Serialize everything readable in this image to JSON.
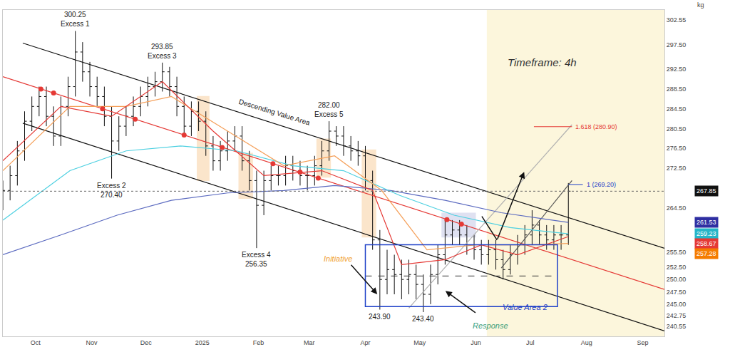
{
  "chart_data": {
    "type": "ohlc",
    "title": "Timeframe: 4h",
    "ylabel": "kg",
    "color": "#111111",
    "grid": false,
    "x": [
      "2024-09-13",
      "2024-09-17",
      "2024-09-21",
      "2024-09-25",
      "2024-09-29",
      "2024-10-03",
      "2024-10-07",
      "2024-10-11",
      "2024-10-15",
      "2024-10-19",
      "2024-10-23",
      "2024-10-27",
      "2024-10-31",
      "2024-11-04",
      "2024-11-08",
      "2024-11-12",
      "2024-11-16",
      "2024-11-20",
      "2024-11-24",
      "2024-11-28",
      "2024-12-02",
      "2024-12-06",
      "2024-12-10",
      "2024-12-14",
      "2024-12-18",
      "2024-12-22",
      "2024-12-26",
      "2024-12-30",
      "2025-01-03",
      "2025-01-07",
      "2025-01-11",
      "2025-01-15",
      "2025-01-19",
      "2025-01-23",
      "2025-01-27",
      "2025-01-31",
      "2025-02-04",
      "2025-02-08",
      "2025-02-12",
      "2025-02-16",
      "2025-02-20",
      "2025-02-24",
      "2025-02-28",
      "2025-03-04",
      "2025-03-08",
      "2025-03-12",
      "2025-03-16",
      "2025-03-20",
      "2025-03-24",
      "2025-03-28",
      "2025-04-01",
      "2025-04-05",
      "2025-04-09",
      "2025-04-13",
      "2025-04-17",
      "2025-04-21",
      "2025-04-25",
      "2025-04-29",
      "2025-05-03",
      "2025-05-07",
      "2025-05-11",
      "2025-05-15",
      "2025-05-19",
      "2025-05-23",
      "2025-05-27",
      "2025-05-31",
      "2025-06-04",
      "2025-06-08",
      "2025-06-12",
      "2025-06-16",
      "2025-06-20",
      "2025-06-24",
      "2025-06-28",
      "2025-07-02",
      "2025-07-06",
      "2025-07-10",
      "2025-07-14",
      "2025-07-18",
      "2025-07-22"
    ],
    "open": [
      266,
      268,
      271,
      276,
      282,
      285,
      287,
      283,
      279,
      285,
      289,
      296,
      292,
      289,
      287,
      283,
      278,
      281,
      283,
      285,
      287,
      289,
      290,
      292,
      289,
      285,
      281,
      284,
      282,
      277,
      274,
      276,
      278,
      279,
      274,
      270,
      265,
      270,
      271,
      271,
      273,
      272,
      271,
      271,
      273,
      276,
      280,
      279,
      277,
      276,
      275,
      270,
      258,
      250,
      252,
      251,
      250,
      251,
      249,
      247,
      251,
      255,
      259,
      260,
      259,
      257,
      256,
      255,
      256,
      254,
      252,
      255,
      257,
      259,
      261,
      259,
      258,
      259,
      259
    ],
    "high": [
      270,
      273,
      278,
      284,
      287,
      289,
      289,
      285,
      287,
      291,
      300.25,
      298,
      294,
      291,
      289,
      285,
      283,
      285,
      287,
      289,
      291,
      292,
      293.85,
      293,
      291,
      287,
      286,
      286,
      284,
      279,
      278,
      280,
      281,
      281,
      276,
      272,
      272,
      273,
      273,
      275,
      275,
      274,
      273,
      275,
      278,
      282,
      281,
      281,
      279,
      278,
      277,
      272,
      260,
      256,
      255,
      254,
      254,
      253,
      251,
      253,
      257,
      262,
      262,
      262,
      261,
      259,
      258,
      258,
      258,
      256,
      257,
      259,
      261,
      264,
      262,
      261,
      261,
      261,
      269.5
    ],
    "low": [
      264,
      266,
      269,
      274,
      280,
      283,
      281,
      277,
      277,
      283,
      287,
      290,
      287,
      285,
      281,
      270.4,
      276,
      279,
      281,
      283,
      285,
      287,
      288,
      287,
      283,
      279,
      279,
      280,
      275,
      272,
      272,
      274,
      276,
      272,
      268,
      256.35,
      263,
      268,
      269,
      269,
      270,
      269,
      268,
      269,
      271,
      274,
      277,
      275,
      274,
      273,
      268,
      256,
      243.9,
      247,
      247,
      246,
      247,
      246,
      243.4,
      245,
      249,
      253,
      257,
      257,
      255,
      254,
      253,
      253,
      252,
      250,
      251,
      253,
      255,
      257,
      257,
      256,
      256,
      256,
      257
    ],
    "close": [
      268,
      271,
      276,
      282,
      285,
      287,
      283,
      279,
      285,
      289,
      296,
      292,
      289,
      287,
      283,
      278,
      281,
      283,
      285,
      287,
      289,
      290,
      292,
      289,
      285,
      281,
      284,
      282,
      277,
      274,
      276,
      278,
      279,
      274,
      270,
      265,
      270,
      271,
      271,
      273,
      272,
      271,
      271,
      273,
      276,
      280,
      279,
      277,
      276,
      275,
      270,
      258,
      250,
      252,
      251,
      250,
      251,
      249,
      247,
      251,
      255,
      259,
      260,
      259,
      257,
      256,
      255,
      256,
      254,
      252,
      255,
      257,
      259,
      261,
      259,
      258,
      259,
      259,
      267.85
    ],
    "xlim": [
      "2024-09-13",
      "2025-09-13"
    ],
    "xticks": [
      {
        "value": "2024-10-01",
        "label": "Oct"
      },
      {
        "value": "2024-11-01",
        "label": "Nov"
      },
      {
        "value": "2024-12-01",
        "label": "Dec"
      },
      {
        "value": "2025-01-01",
        "label": "2025"
      },
      {
        "value": "2025-02-01",
        "label": "Feb"
      },
      {
        "value": "2025-03-01",
        "label": "Mar"
      },
      {
        "value": "2025-04-01",
        "label": "Apr"
      },
      {
        "value": "2025-05-01",
        "label": "May"
      },
      {
        "value": "2025-06-01",
        "label": "Jun"
      },
      {
        "value": "2025-07-01",
        "label": "Jul"
      },
      {
        "value": "2025-08-01",
        "label": "Aug"
      },
      {
        "value": "2025-09-01",
        "label": "Sep"
      }
    ],
    "ylim": [
      238.5,
      304.5
    ],
    "yticks": [
      302.55,
      {
        "value": 297.5,
        "label": "297.50"
      },
      {
        "value": 292.5,
        "label": "292.50"
      },
      {
        "value": 288.5,
        "label": "288.50"
      },
      {
        "value": 284.5,
        "label": "284.50"
      },
      {
        "value": 280.5,
        "label": "280.50"
      },
      {
        "value": 276.5,
        "label": "276.50"
      },
      {
        "value": 272.5,
        "label": "272.50"
      },
      {
        "value": 264.5,
        "label": "264.50"
      },
      {
        "value": 255.5,
        "label": "255.50"
      },
      {
        "value": 252.5,
        "label": "252.50"
      },
      {
        "value": 250,
        "label": "250.00"
      },
      {
        "value": 247.5,
        "label": "247.50"
      },
      {
        "value": 245,
        "label": "245.00"
      },
      242.75,
      240.55
    ],
    "series": [
      {
        "type": "line",
        "color": "#111111",
        "line_style": "solid",
        "x": [
          "2024-09-24",
          "2025-09-13"
        ],
        "values": [
          297.8,
          256.3
        ]
      },
      {
        "type": "line",
        "color": "#111111",
        "line_style": "solid",
        "x": [
          "2024-09-24",
          "2025-09-13"
        ],
        "values": [
          281.6,
          239.6
        ]
      },
      {
        "type": "line",
        "color": "#e53935",
        "line_style": "solid",
        "x": [
          "2024-09-13",
          "2025-09-13"
        ],
        "values": [
          291,
          248
        ]
      },
      {
        "type": "line",
        "color": "#b0b0b0",
        "line_style": "solid",
        "x": [
          "2025-04-25",
          "2025-07-24"
        ],
        "values": [
          244.2,
          281.3
        ]
      },
      {
        "type": "line",
        "color": "#555555",
        "line_style": "solid",
        "x": [
          "2025-06-15",
          "2025-07-24"
        ],
        "values": [
          252.3,
          270.0
        ]
      },
      {
        "type": "line",
        "color": "#5c6bc0",
        "line_style": "solid",
        "x": [
          "2024-09-13",
          "2024-10-15",
          "2024-11-15",
          "2024-12-15",
          "2025-01-15",
          "2025-02-15",
          "2025-03-15",
          "2025-04-15",
          "2025-05-15",
          "2025-06-15",
          "2025-07-22"
        ],
        "values": [
          255,
          259,
          263,
          266,
          267.5,
          268,
          269,
          268,
          266,
          263.5,
          261.53
        ]
      },
      {
        "type": "line",
        "color": "#4dd0e1",
        "line_style": "solid",
        "x": [
          "2024-09-13",
          "2024-10-20",
          "2024-11-20",
          "2024-12-20",
          "2025-01-20",
          "2025-02-20",
          "2025-03-20",
          "2025-04-20",
          "2025-05-20",
          "2025-06-20",
          "2025-07-22"
        ],
        "values": [
          262,
          272,
          276,
          277,
          276,
          273,
          272,
          267,
          263,
          260.5,
          259.23
        ]
      },
      {
        "type": "line",
        "color": "#f5a05a",
        "line_style": "solid",
        "x": [
          "2024-09-13",
          "2024-10-20",
          "2024-11-20",
          "2024-12-15",
          "2025-01-15",
          "2025-02-15",
          "2025-03-15",
          "2025-04-10",
          "2025-05-05",
          "2025-06-01",
          "2025-07-01",
          "2025-07-22"
        ],
        "values": [
          272,
          285,
          285,
          287,
          280,
          273,
          275,
          268,
          256,
          257,
          257,
          257.28
        ]
      },
      {
        "type": "line",
        "color": "#e53935",
        "line_style": "solid",
        "x": [
          "2024-09-13",
          "2024-10-15",
          "2024-11-12",
          "2024-12-10",
          "2025-01-07",
          "2025-02-04",
          "2025-03-08",
          "2025-04-05",
          "2025-04-21",
          "2025-05-15",
          "2025-06-04",
          "2025-06-24",
          "2025-07-22"
        ],
        "values": [
          274,
          285,
          283,
          290,
          280,
          271,
          272,
          268,
          253,
          254,
          257,
          255,
          258.67
        ]
      }
    ],
    "markers": {
      "color": "#e53935",
      "marker": "circle",
      "x": [
        "2024-10-04",
        "2024-10-11",
        "2024-11-07",
        "2024-11-25",
        "2024-12-22",
        "2025-01-12",
        "2025-02-09",
        "2025-02-24",
        "2025-03-06",
        "2025-05-16",
        "2025-05-24"
      ],
      "values": [
        288.5,
        287.7,
        284.5,
        282.4,
        279.2,
        276.7,
        273.4,
        271.7,
        270.5,
        262.1,
        261.2
      ]
    },
    "last_price": {
      "value": 267.85,
      "color": "#666666",
      "line_style": "dotted"
    },
    "levels": [
      {
        "text": "1.618 (280.90)",
        "value": 280.9,
        "x": [
          "2025-07-03",
          "2025-07-24"
        ],
        "color": "#e53935"
      },
      {
        "text": "1 (269.20)",
        "value": 269.2,
        "x": [
          "2025-07-22",
          "2025-07-30"
        ],
        "color": "#1e40c8"
      }
    ],
    "zones": [
      {
        "x": [
          "2024-12-29",
          "2025-01-05"
        ],
        "y": [
          269.9,
          287.1
        ],
        "color": "#f9d3a8"
      },
      {
        "x": [
          "2025-01-21",
          "2025-01-29"
        ],
        "y": [
          266.3,
          275.6
        ],
        "color": "#f9d3a8"
      },
      {
        "x": [
          "2025-03-05",
          "2025-03-13"
        ],
        "y": [
          270.6,
          278.5
        ],
        "color": "#f9d3a8"
      },
      {
        "x": [
          "2025-03-30",
          "2025-04-07"
        ],
        "y": [
          258.5,
          276.3
        ],
        "color": "#f9d3a8"
      },
      {
        "x": [
          "2025-05-13",
          "2025-06-01"
        ],
        "y": [
          258.5,
          263.5
        ],
        "color": "#c9cde8"
      }
    ],
    "shaded": {
      "x": [
        "2025-06-07",
        "2025-09-13"
      ],
      "color": "#fcf6dc"
    },
    "value_area": {
      "x": [
        "2025-04-01",
        "2025-07-16"
      ],
      "y": [
        244.5,
        257.0
      ],
      "mid": 250.7,
      "color": "#1e40c8"
    },
    "channel_label": {
      "text": "Descending Value Area",
      "x": "2025-02-10",
      "y": 283.8
    },
    "annotations": [
      {
        "text": [
          "300.25",
          "Excess 1"
        ],
        "x": "2024-10-23",
        "y": 300.25
      },
      {
        "text": [
          "Excess 2",
          "270.40"
        ],
        "x": "2024-11-12",
        "y": 270.4
      },
      {
        "text": [
          "293.85",
          "Excess 3"
        ],
        "x": "2024-12-10",
        "y": 293.85
      },
      {
        "text": [
          "Excess 4",
          "256.35"
        ],
        "x": "2025-01-31",
        "y": 256.35
      },
      {
        "text": [
          "282.00",
          "Excess 5"
        ],
        "x": "2025-03-12",
        "y": 282
      },
      {
        "text": [
          "243.90"
        ],
        "x": "2025-04-09",
        "y": 243.9
      },
      {
        "text": [
          "243.40"
        ],
        "x": "2025-05-03",
        "y": 243.4
      },
      {
        "text": [
          "Initiative"
        ],
        "x": "2025-03-17",
        "y": 254.2,
        "color": "#f0a030"
      },
      {
        "text": [
          "Response"
        ],
        "x": "2025-06-09",
        "y": 240.6,
        "color": "#3a9e7a"
      },
      {
        "text": [
          "Value Area 2"
        ],
        "x": "2025-06-28",
        "y": 245.9,
        "color": "#1e40c8"
      }
    ],
    "price_labels": [
      {
        "value": 267.85,
        "color": "#111111"
      },
      {
        "value": 261.53,
        "color": "#2f2fa2"
      },
      {
        "value": 259.23,
        "color": "#26b5c8"
      },
      {
        "value": 258.67,
        "color": "#e53935"
      },
      {
        "value": 257.28,
        "color": "#f57c00"
      }
    ]
  }
}
